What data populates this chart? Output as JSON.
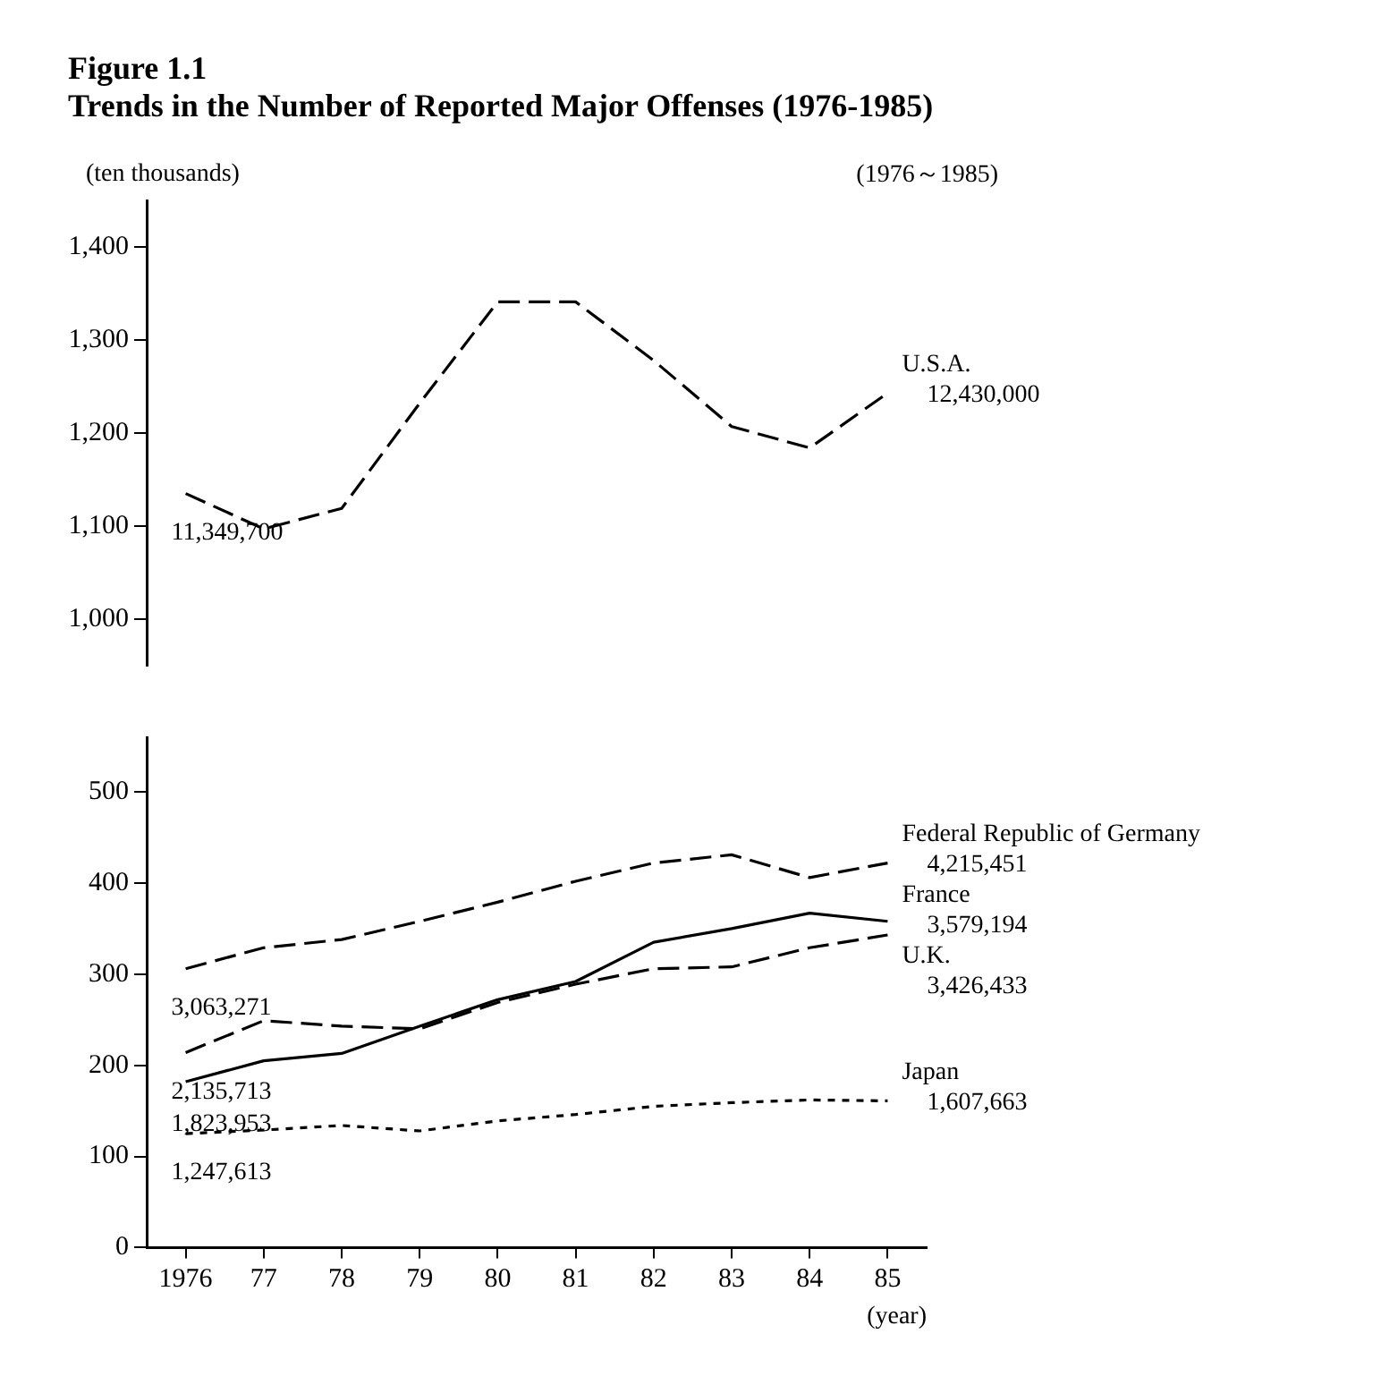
{
  "chart_data": [
    {
      "type": "line",
      "title": "Figure 1.1",
      "subtitle": "Trends in the Number of Reported Major Offenses (1976-1985)",
      "ylabel": "(ten thousands)",
      "categories": [
        "1976",
        "77",
        "78",
        "79",
        "80",
        "81",
        "82",
        "83",
        "84",
        "85"
      ],
      "ylim": [
        950,
        1450
      ],
      "yticks": [
        {
          "value": 1000,
          "label": "1,000"
        },
        {
          "value": 1100,
          "label": "1,100"
        },
        {
          "value": 1200,
          "label": "1,200"
        },
        {
          "value": 1300,
          "label": "1,300"
        },
        {
          "value": 1400,
          "label": "1,400"
        }
      ],
      "tick_labels": "y",
      "grid": false,
      "legend": false,
      "marker": "none",
      "annotations": [
        "(1976～1985)",
        {
          "text": "11,349,700",
          "x": "1976",
          "y": 1135
        },
        {
          "text": "12,430,000",
          "x": "85",
          "y": 1243
        }
      ],
      "series": [
        {
          "name": "U.S.A.",
          "color": "#000000",
          "line_style": "dashed",
          "values": [
            1135,
            1097,
            1119,
            1232,
            1341,
            1341,
            1278,
            1207,
            1184,
            1243
          ]
        }
      ]
    },
    {
      "type": "line",
      "xlabel": "(year)",
      "categories": [
        "1976",
        "77",
        "78",
        "79",
        "80",
        "81",
        "82",
        "83",
        "84",
        "85"
      ],
      "ylim": [
        0,
        560
      ],
      "yticks": [
        0,
        100,
        200,
        300,
        400,
        500
      ],
      "grid": false,
      "legend": false,
      "marker": "none",
      "annotations": [
        {
          "text": "3,063,271",
          "x": "1976",
          "y": 306
        },
        {
          "text": "4,215,451",
          "x": "85",
          "y": 422
        },
        {
          "text": "1,823,953",
          "x": "1976",
          "y": 182
        },
        {
          "text": "3,579,194",
          "x": "85",
          "y": 358
        },
        {
          "text": "2,135,713",
          "x": "1976",
          "y": 214
        },
        {
          "text": "3,426,433",
          "x": "85",
          "y": 343
        },
        {
          "text": "1,247,613",
          "x": "1976",
          "y": 125
        },
        {
          "text": "1,607,663",
          "x": "85",
          "y": 161
        }
      ],
      "series": [
        {
          "name": "Federal Republic of Germany",
          "color": "#000000",
          "line_style": "dashed",
          "values": [
            306,
            329,
            338,
            358,
            379,
            402,
            422,
            431,
            406,
            422
          ]
        },
        {
          "name": "France",
          "color": "#000000",
          "line_style": "solid",
          "values": [
            182,
            205,
            213,
            243,
            272,
            292,
            335,
            350,
            367,
            358
          ]
        },
        {
          "name": "U.K.",
          "color": "#000000",
          "line_style": "dashed",
          "values": [
            214,
            249,
            243,
            240,
            269,
            289,
            306,
            308,
            329,
            343
          ]
        },
        {
          "name": "Japan",
          "color": "#000000",
          "line_style": "dotted",
          "values": [
            125,
            129,
            134,
            128,
            139,
            146,
            155,
            159,
            162,
            161
          ]
        }
      ]
    }
  ]
}
